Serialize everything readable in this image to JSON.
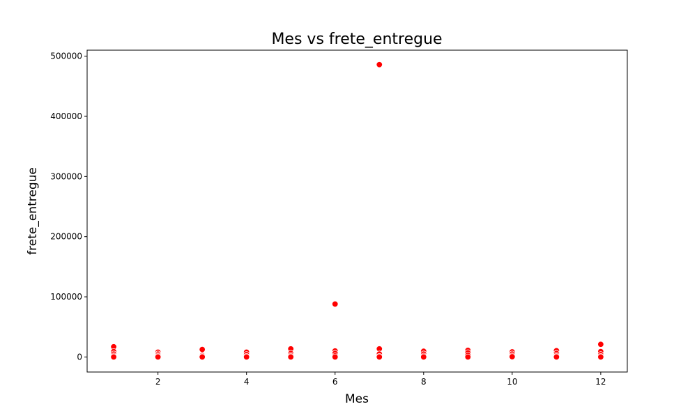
{
  "chart_data": {
    "type": "scatter",
    "title": "Mes vs frete_entregue",
    "xlabel": "Mes",
    "ylabel": "frete_entregue",
    "xlim": [
      0.4,
      12.6
    ],
    "ylim": [
      -25000,
      510000
    ],
    "xticks": [
      2,
      4,
      6,
      8,
      10,
      12
    ],
    "yticks": [
      0,
      100000,
      200000,
      300000,
      400000,
      500000
    ],
    "grid": false,
    "legend": "none",
    "marker_color": "#ff0000",
    "marker_edge": "#ffffff",
    "series": [
      {
        "x": [
          1,
          1,
          1,
          1,
          1,
          1,
          2,
          2,
          2,
          2,
          2,
          3,
          3,
          3,
          3,
          4,
          4,
          4,
          4,
          5,
          5,
          5,
          5,
          5,
          6,
          6,
          6,
          6,
          6,
          7,
          7,
          7,
          7,
          7,
          8,
          8,
          8,
          8,
          9,
          9,
          9,
          9,
          10,
          10,
          10,
          10,
          11,
          11,
          11,
          11,
          11,
          12,
          12,
          12,
          12,
          12
        ],
        "y": [
          17000,
          9000,
          5000,
          2000,
          500,
          0,
          8000,
          5000,
          3000,
          1000,
          0,
          12500,
          2500,
          1000,
          0,
          8000,
          4000,
          1000,
          0,
          13500,
          6000,
          3000,
          1000,
          0,
          88000,
          10000,
          6000,
          2000,
          0,
          486000,
          13500,
          5000,
          1000,
          0,
          9500,
          5000,
          1500,
          0,
          11000,
          7000,
          3000,
          0,
          8500,
          5000,
          2000,
          500,
          10500,
          6000,
          3000,
          1000,
          0,
          21000,
          9000,
          4000,
          1000,
          0
        ]
      }
    ]
  }
}
